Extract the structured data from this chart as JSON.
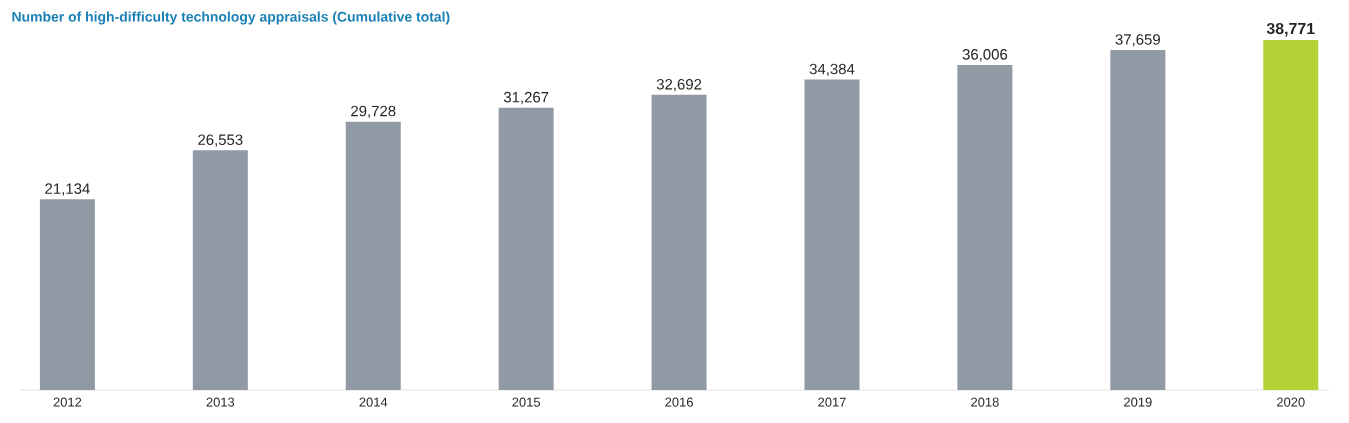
{
  "chart_data": {
    "type": "bar",
    "title": "Number of high-difficulty technology appraisals (Cumulative total)",
    "categories": [
      "2012",
      "2013",
      "2014",
      "2015",
      "2016",
      "2017",
      "2018",
      "2019",
      "2020"
    ],
    "values": [
      21134,
      26553,
      29728,
      31267,
      32692,
      34384,
      36006,
      37659,
      38771
    ],
    "colors": [
      "#9199a5",
      "#9199a5",
      "#9199a5",
      "#9199a5",
      "#9199a5",
      "#9199a5",
      "#9199a5",
      "#9199a5",
      "#b2d235"
    ],
    "value_labels": [
      "21,134",
      "26,553",
      "29,728",
      "31,267",
      "32,692",
      "34,384",
      "36,006",
      "37,659",
      "38,771"
    ]
  }
}
